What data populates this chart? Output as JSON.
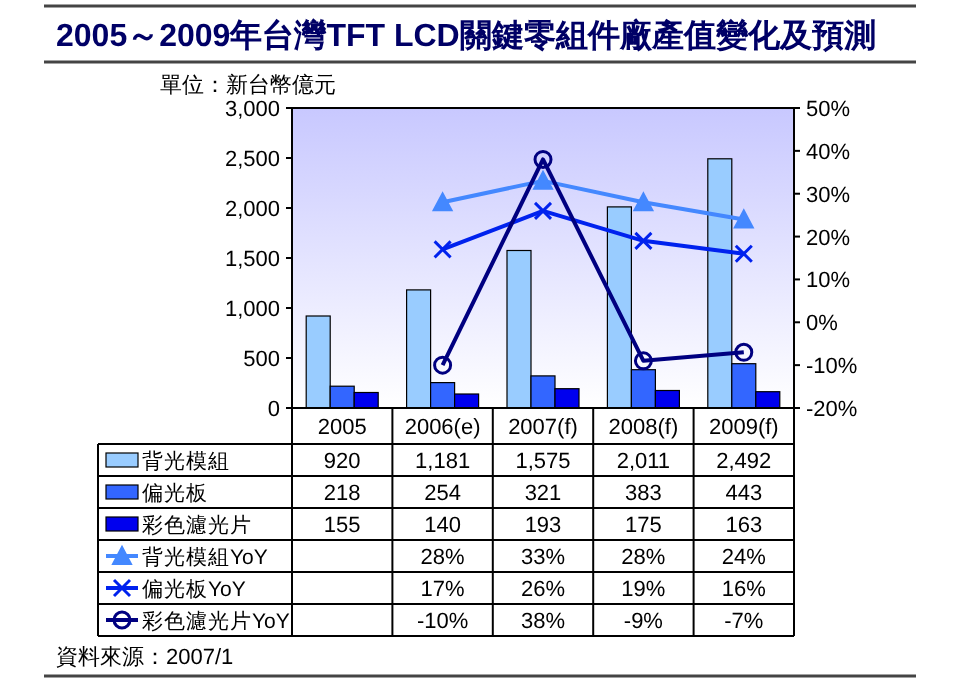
{
  "chart_data": {
    "type": "bar",
    "title": "2005～2009年台灣TFT LCD關鍵零組件廠產值變化及預測",
    "ylabel": "單位：新台幣億元",
    "categories": [
      "2005",
      "2006(e)",
      "2007(f)",
      "2008(f)",
      "2009(f)"
    ],
    "ylim": [
      0,
      3000
    ],
    "yticks": [
      0,
      {
        "value": 500,
        "label": "500"
      },
      {
        "value": 1000,
        "label": "1,000"
      },
      {
        "value": 1500,
        "label": "1,500"
      },
      {
        "value": 2000,
        "label": "2,000"
      },
      {
        "value": 2500,
        "label": "2,500"
      },
      {
        "value": 3000,
        "label": "3,000"
      }
    ],
    "y2lim": [
      -20,
      50
    ],
    "y2ticks": [
      {
        "value": -20,
        "label": "-20%"
      },
      {
        "value": -10,
        "label": "-10%"
      },
      {
        "value": 0,
        "label": "0%"
      },
      {
        "value": 10,
        "label": "10%"
      },
      {
        "value": 20,
        "label": "20%"
      },
      {
        "value": 30,
        "label": "30%"
      },
      {
        "value": 40,
        "label": "40%"
      },
      {
        "value": 50,
        "label": "50%"
      }
    ],
    "series": [
      {
        "name": "背光模組",
        "color": "#99ccff",
        "values": [
          920,
          1181,
          1575,
          2011,
          2492
        ],
        "value_labels": [
          "920",
          "1,181",
          "1,575",
          "2,011",
          "2,492"
        ]
      },
      {
        "name": "偏光板",
        "color": "#3366ff",
        "values": [
          218,
          254,
          321,
          383,
          443
        ],
        "value_labels": [
          "218",
          "254",
          "321",
          "383",
          "443"
        ]
      },
      {
        "name": "彩色濾光片",
        "color": "#0000ee",
        "values": [
          155,
          140,
          193,
          175,
          163
        ],
        "value_labels": [
          "155",
          "140",
          "193",
          "175",
          "163"
        ]
      },
      {
        "name": "背光模組YoY",
        "type": "line",
        "axis": "y2",
        "marker": "triangle",
        "color": "#4488ff",
        "values": [
          null,
          28,
          33,
          28,
          24
        ],
        "value_labels": [
          null,
          "28%",
          "33%",
          "28%",
          "24%"
        ]
      },
      {
        "name": "偏光板YoY",
        "type": "line",
        "axis": "y2",
        "marker": "cross",
        "color": "#0022ee",
        "values": [
          null,
          17,
          26,
          19,
          16
        ],
        "value_labels": [
          null,
          "17%",
          "26%",
          "19%",
          "16%"
        ]
      },
      {
        "name": "彩色濾光片YoY",
        "type": "line",
        "axis": "y2",
        "marker": "circle",
        "color": "#000080",
        "values": [
          null,
          -10,
          38,
          -9,
          -7
        ],
        "value_labels": [
          null,
          "-10%",
          "38%",
          "-9%",
          "-7%"
        ]
      }
    ],
    "legend": "bottom",
    "grid": false,
    "annotations": [
      "資料來源：2007/1"
    ]
  }
}
